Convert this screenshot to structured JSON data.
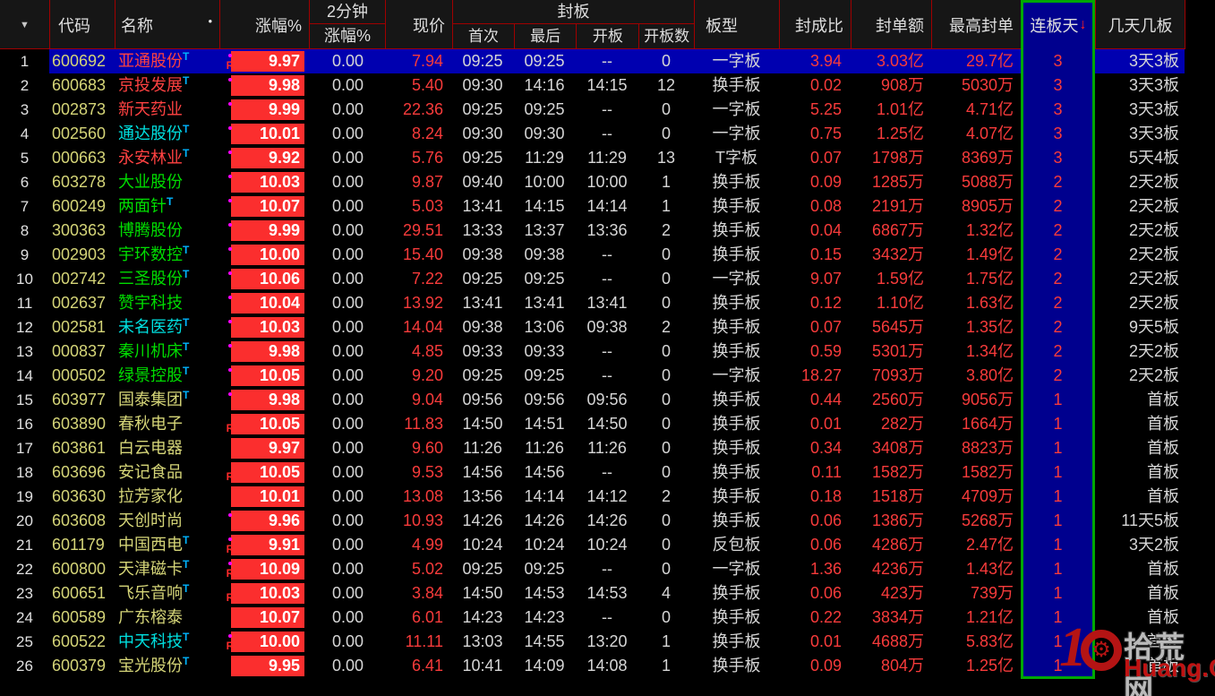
{
  "table": {
    "corner_icon": "▼",
    "sort_arrow": "↓",
    "t_label": "T",
    "r_label": "R",
    "columns": {
      "code": "代码",
      "name": "名称",
      "name_dot": "•",
      "pct": "涨幅%",
      "min2_line1": "2分钟",
      "min2_line2": "涨幅%",
      "price": "现价",
      "seal_group": "封板",
      "first": "首次",
      "last": "最后",
      "open": "开板",
      "open_count": "开板数",
      "board_type": "板型",
      "seal_ratio": "封成比",
      "seal_amount": "封单额",
      "max_seal": "最高封单",
      "consec_days": "连板天",
      "days_boards": "几天几板"
    },
    "rows": [
      {
        "num": "1",
        "code": "600692",
        "name": "亚通股份",
        "name_color": "red",
        "t": true,
        "marker": "dot_r",
        "pct": "9.97",
        "min2": "0.00",
        "price": "7.94",
        "first": "09:25",
        "last": "09:25",
        "open": "--",
        "open_count": "0",
        "board_type": "一字板",
        "seal_ratio": "3.94",
        "seal_amount": "3.03亿",
        "max_seal": "29.7亿",
        "days": "3",
        "days_boards": "3天3板",
        "selected": true
      },
      {
        "num": "2",
        "code": "600683",
        "name": "京投发展",
        "name_color": "red",
        "t": true,
        "marker": "dot",
        "pct": "9.98",
        "min2": "0.00",
        "price": "5.40",
        "first": "09:30",
        "last": "14:16",
        "open": "14:15",
        "open_count": "12",
        "board_type": "换手板",
        "seal_ratio": "0.02",
        "seal_amount": "908万",
        "max_seal": "5030万",
        "days": "3",
        "days_boards": "3天3板"
      },
      {
        "num": "3",
        "code": "002873",
        "name": "新天药业",
        "name_color": "red",
        "t": false,
        "marker": "dot",
        "pct": "9.99",
        "min2": "0.00",
        "price": "22.36",
        "first": "09:25",
        "last": "09:25",
        "open": "--",
        "open_count": "0",
        "board_type": "一字板",
        "seal_ratio": "5.25",
        "seal_amount": "1.01亿",
        "max_seal": "4.71亿",
        "days": "3",
        "days_boards": "3天3板"
      },
      {
        "num": "4",
        "code": "002560",
        "name": "通达股份",
        "name_color": "cyan",
        "t": true,
        "marker": "dot",
        "pct": "10.01",
        "min2": "0.00",
        "price": "8.24",
        "first": "09:30",
        "last": "09:30",
        "open": "--",
        "open_count": "0",
        "board_type": "一字板",
        "seal_ratio": "0.75",
        "seal_amount": "1.25亿",
        "max_seal": "4.07亿",
        "days": "3",
        "days_boards": "3天3板"
      },
      {
        "num": "5",
        "code": "000663",
        "name": "永安林业",
        "name_color": "red",
        "t": true,
        "marker": "dot",
        "pct": "9.92",
        "min2": "0.00",
        "price": "5.76",
        "first": "09:25",
        "last": "11:29",
        "open": "11:29",
        "open_count": "13",
        "board_type": "T字板",
        "seal_ratio": "0.07",
        "seal_amount": "1798万",
        "max_seal": "8369万",
        "days": "3",
        "days_boards": "5天4板"
      },
      {
        "num": "6",
        "code": "603278",
        "name": "大业股份",
        "name_color": "green",
        "t": false,
        "marker": "dot",
        "pct": "10.03",
        "min2": "0.00",
        "price": "9.87",
        "first": "09:40",
        "last": "10:00",
        "open": "10:00",
        "open_count": "1",
        "board_type": "换手板",
        "seal_ratio": "0.09",
        "seal_amount": "1285万",
        "max_seal": "5088万",
        "days": "2",
        "days_boards": "2天2板"
      },
      {
        "num": "7",
        "code": "600249",
        "name": "两面针",
        "name_color": "green",
        "t": true,
        "marker": "dot",
        "pct": "10.07",
        "min2": "0.00",
        "price": "5.03",
        "first": "13:41",
        "last": "14:15",
        "open": "14:14",
        "open_count": "1",
        "board_type": "换手板",
        "seal_ratio": "0.08",
        "seal_amount": "2191万",
        "max_seal": "8905万",
        "days": "2",
        "days_boards": "2天2板"
      },
      {
        "num": "8",
        "code": "300363",
        "name": "博腾股份",
        "name_color": "green",
        "t": false,
        "marker": "dot",
        "pct": "9.99",
        "min2": "0.00",
        "price": "29.51",
        "first": "13:33",
        "last": "13:37",
        "open": "13:36",
        "open_count": "2",
        "board_type": "换手板",
        "seal_ratio": "0.04",
        "seal_amount": "6867万",
        "max_seal": "1.32亿",
        "days": "2",
        "days_boards": "2天2板"
      },
      {
        "num": "9",
        "code": "002903",
        "name": "宇环数控",
        "name_color": "green",
        "t": true,
        "marker": "dot",
        "pct": "10.00",
        "min2": "0.00",
        "price": "15.40",
        "first": "09:38",
        "last": "09:38",
        "open": "--",
        "open_count": "0",
        "board_type": "换手板",
        "seal_ratio": "0.15",
        "seal_amount": "3432万",
        "max_seal": "1.49亿",
        "days": "2",
        "days_boards": "2天2板"
      },
      {
        "num": "10",
        "code": "002742",
        "name": "三圣股份",
        "name_color": "green",
        "t": true,
        "marker": "dot",
        "pct": "10.06",
        "min2": "0.00",
        "price": "7.22",
        "first": "09:25",
        "last": "09:25",
        "open": "--",
        "open_count": "0",
        "board_type": "一字板",
        "seal_ratio": "9.07",
        "seal_amount": "1.59亿",
        "max_seal": "1.75亿",
        "days": "2",
        "days_boards": "2天2板"
      },
      {
        "num": "11",
        "code": "002637",
        "name": "赞宇科技",
        "name_color": "green",
        "t": false,
        "marker": "dot",
        "pct": "10.04",
        "min2": "0.00",
        "price": "13.92",
        "first": "13:41",
        "last": "13:41",
        "open": "13:41",
        "open_count": "0",
        "board_type": "换手板",
        "seal_ratio": "0.12",
        "seal_amount": "1.10亿",
        "max_seal": "1.63亿",
        "days": "2",
        "days_boards": "2天2板"
      },
      {
        "num": "12",
        "code": "002581",
        "name": "未名医药",
        "name_color": "cyan",
        "t": true,
        "marker": "dot",
        "pct": "10.03",
        "min2": "0.00",
        "price": "14.04",
        "first": "09:38",
        "last": "13:06",
        "open": "09:38",
        "open_count": "2",
        "board_type": "换手板",
        "seal_ratio": "0.07",
        "seal_amount": "5645万",
        "max_seal": "1.35亿",
        "days": "2",
        "days_boards": "9天5板"
      },
      {
        "num": "13",
        "code": "000837",
        "name": "秦川机床",
        "name_color": "green",
        "t": true,
        "marker": "dot",
        "pct": "9.98",
        "min2": "0.00",
        "price": "4.85",
        "first": "09:33",
        "last": "09:33",
        "open": "--",
        "open_count": "0",
        "board_type": "换手板",
        "seal_ratio": "0.59",
        "seal_amount": "5301万",
        "max_seal": "1.34亿",
        "days": "2",
        "days_boards": "2天2板"
      },
      {
        "num": "14",
        "code": "000502",
        "name": "绿景控股",
        "name_color": "green",
        "t": true,
        "marker": "dot",
        "pct": "10.05",
        "min2": "0.00",
        "price": "9.20",
        "first": "09:25",
        "last": "09:25",
        "open": "--",
        "open_count": "0",
        "board_type": "一字板",
        "seal_ratio": "18.27",
        "seal_amount": "7093万",
        "max_seal": "3.80亿",
        "days": "2",
        "days_boards": "2天2板"
      },
      {
        "num": "15",
        "code": "603977",
        "name": "国泰集团",
        "name_color": "yellow",
        "t": true,
        "marker": "dot",
        "pct": "9.98",
        "min2": "0.00",
        "price": "9.04",
        "first": "09:56",
        "last": "09:56",
        "open": "09:56",
        "open_count": "0",
        "board_type": "换手板",
        "seal_ratio": "0.44",
        "seal_amount": "2560万",
        "max_seal": "9056万",
        "days": "1",
        "days_boards": "首板"
      },
      {
        "num": "16",
        "code": "603890",
        "name": "春秋电子",
        "name_color": "yellow",
        "t": false,
        "marker": "r",
        "pct": "10.05",
        "min2": "0.00",
        "price": "11.83",
        "first": "14:50",
        "last": "14:51",
        "open": "14:50",
        "open_count": "0",
        "board_type": "换手板",
        "seal_ratio": "0.01",
        "seal_amount": "282万",
        "max_seal": "1664万",
        "days": "1",
        "days_boards": "首板"
      },
      {
        "num": "17",
        "code": "603861",
        "name": "白云电器",
        "name_color": "yellow",
        "t": false,
        "marker": "",
        "pct": "9.97",
        "min2": "0.00",
        "price": "9.60",
        "first": "11:26",
        "last": "11:26",
        "open": "11:26",
        "open_count": "0",
        "board_type": "换手板",
        "seal_ratio": "0.34",
        "seal_amount": "3408万",
        "max_seal": "8823万",
        "days": "1",
        "days_boards": "首板"
      },
      {
        "num": "18",
        "code": "603696",
        "name": "安记食品",
        "name_color": "yellow",
        "t": false,
        "marker": "r",
        "pct": "10.05",
        "min2": "0.00",
        "price": "9.53",
        "first": "14:56",
        "last": "14:56",
        "open": "--",
        "open_count": "0",
        "board_type": "换手板",
        "seal_ratio": "0.11",
        "seal_amount": "1582万",
        "max_seal": "1582万",
        "days": "1",
        "days_boards": "首板"
      },
      {
        "num": "19",
        "code": "603630",
        "name": "拉芳家化",
        "name_color": "yellow",
        "t": false,
        "marker": "",
        "pct": "10.01",
        "min2": "0.00",
        "price": "13.08",
        "first": "13:56",
        "last": "14:14",
        "open": "14:12",
        "open_count": "2",
        "board_type": "换手板",
        "seal_ratio": "0.18",
        "seal_amount": "1518万",
        "max_seal": "4709万",
        "days": "1",
        "days_boards": "首板"
      },
      {
        "num": "20",
        "code": "603608",
        "name": "天创时尚",
        "name_color": "yellow",
        "t": false,
        "marker": "dot",
        "pct": "9.96",
        "min2": "0.00",
        "price": "10.93",
        "first": "14:26",
        "last": "14:26",
        "open": "14:26",
        "open_count": "0",
        "board_type": "换手板",
        "seal_ratio": "0.06",
        "seal_amount": "1386万",
        "max_seal": "5268万",
        "days": "1",
        "days_boards": "11天5板"
      },
      {
        "num": "21",
        "code": "601179",
        "name": "中国西电",
        "name_color": "yellow",
        "t": true,
        "marker": "dot_r",
        "pct": "9.91",
        "min2": "0.00",
        "price": "4.99",
        "first": "10:24",
        "last": "10:24",
        "open": "10:24",
        "open_count": "0",
        "board_type": "反包板",
        "seal_ratio": "0.06",
        "seal_amount": "4286万",
        "max_seal": "2.47亿",
        "days": "1",
        "days_boards": "3天2板"
      },
      {
        "num": "22",
        "code": "600800",
        "name": "天津磁卡",
        "name_color": "yellow",
        "t": true,
        "marker": "dot_r",
        "pct": "10.09",
        "min2": "0.00",
        "price": "5.02",
        "first": "09:25",
        "last": "09:25",
        "open": "--",
        "open_count": "0",
        "board_type": "一字板",
        "seal_ratio": "1.36",
        "seal_amount": "4236万",
        "max_seal": "1.43亿",
        "days": "1",
        "days_boards": "首板"
      },
      {
        "num": "23",
        "code": "600651",
        "name": "飞乐音响",
        "name_color": "yellow",
        "t": true,
        "marker": "r",
        "pct": "10.03",
        "min2": "0.00",
        "price": "3.84",
        "first": "14:50",
        "last": "14:53",
        "open": "14:53",
        "open_count": "4",
        "board_type": "换手板",
        "seal_ratio": "0.06",
        "seal_amount": "423万",
        "max_seal": "739万",
        "days": "1",
        "days_boards": "首板"
      },
      {
        "num": "24",
        "code": "600589",
        "name": "广东榕泰",
        "name_color": "yellow",
        "t": false,
        "marker": "",
        "pct": "10.07",
        "min2": "0.00",
        "price": "6.01",
        "first": "14:23",
        "last": "14:23",
        "open": "--",
        "open_count": "0",
        "board_type": "换手板",
        "seal_ratio": "0.22",
        "seal_amount": "3834万",
        "max_seal": "1.21亿",
        "days": "1",
        "days_boards": "首板"
      },
      {
        "num": "25",
        "code": "600522",
        "name": "中天科技",
        "name_color": "cyan",
        "t": true,
        "marker": "dot_r",
        "pct": "10.00",
        "min2": "0.00",
        "price": "11.11",
        "first": "13:03",
        "last": "14:55",
        "open": "13:20",
        "open_count": "1",
        "board_type": "换手板",
        "seal_ratio": "0.01",
        "seal_amount": "4688万",
        "max_seal": "5.83亿",
        "days": "1",
        "days_boards": "首板"
      },
      {
        "num": "26",
        "code": "600379",
        "name": "宝光股份",
        "name_color": "yellow",
        "t": true,
        "marker": "",
        "pct": "9.95",
        "min2": "0.00",
        "price": "6.41",
        "first": "10:41",
        "last": "14:09",
        "open": "14:08",
        "open_count": "1",
        "board_type": "换手板",
        "seal_ratio": "0.09",
        "seal_amount": "804万",
        "max_seal": "1.25亿",
        "days": "1",
        "days_boards": "首板"
      }
    ]
  },
  "watermark": {
    "number": "10",
    "gear_icon": "⚙",
    "site": "拾荒网",
    "domain": "Huang.CN"
  },
  "colors": {
    "limit_box_red": "#fb2e2e",
    "value_red": "#f83b3b",
    "code_yellow": "#d5d578",
    "name_green": "#00dd00",
    "name_cyan": "#00e0e0",
    "name_red": "#ff4242",
    "grid_red": "#a00000",
    "sorted_column_blue": "#00008e",
    "selected_row_blue": "#0000b0",
    "sorted_column_border_green": "#00a800",
    "t_mark_blue": "#00b4ff",
    "dot_magenta": "#ff00ff"
  }
}
